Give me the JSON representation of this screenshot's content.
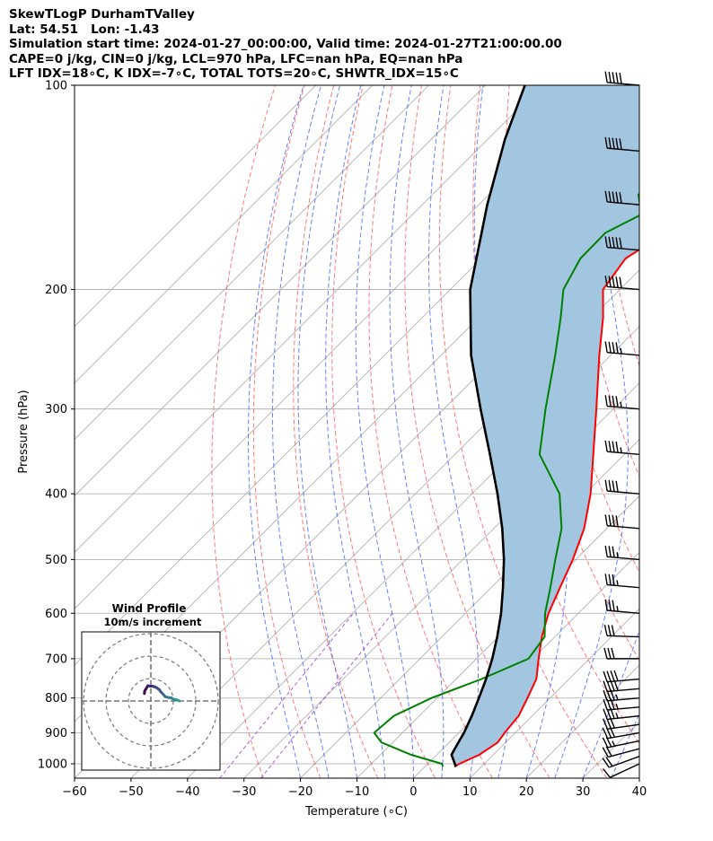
{
  "header": {
    "line1": "SkewTLogP DurhamTValley",
    "line2": "Lat: 54.51   Lon: -1.43",
    "line3": "Simulation start time: 2024-01-27_00:00:00, Valid time: 2024-01-27T21:00:00.00",
    "line4": "CAPE=0 j/kg, CIN=0 j/kg, LCL=970 hPa, LFC=nan hPa, EQ=nan hPa",
    "line5": "LFT IDX=18∘C, K IDX=-7∘C, TOTAL TOTS=20∘C, SHWTR_IDX=15∘C"
  },
  "chart_data": {
    "type": "skew-t log-p",
    "xlabel": "Temperature (∘C)",
    "ylabel": "Pressure (hPa)",
    "xlim": [
      -60,
      40
    ],
    "ylim": [
      1050,
      100
    ],
    "x_ticks": [
      -60,
      -50,
      -40,
      -30,
      -20,
      -10,
      0,
      10,
      20,
      30,
      40
    ],
    "x_tick_labels": [
      "−60",
      "−50",
      "−40",
      "−30",
      "−20",
      "−10",
      "0",
      "10",
      "20",
      "30",
      "40"
    ],
    "y_ticks": [
      1000,
      900,
      800,
      700,
      600,
      500,
      400,
      300,
      200,
      100
    ],
    "y_tick_labels": [
      "1000",
      "900",
      "800",
      "700",
      "600",
      "500",
      "400",
      "300",
      "200",
      "100"
    ],
    "grid": true,
    "colors": {
      "temperature": "#ff0000",
      "dewpoint": "#008000",
      "parcel": "#000000",
      "fill": "#a3c6e0",
      "dry_adiabat": "#ff5555",
      "moist_adiabat": "#3355ff",
      "isotherm_grid": "#aaaaaa",
      "mixing_ratio": "#9933cc"
    },
    "temperature": {
      "pressure": [
        1010,
        1000,
        970,
        930,
        900,
        850,
        800,
        750,
        700,
        650,
        600,
        550,
        500,
        450,
        400,
        350,
        300,
        250,
        220,
        200,
        180,
        165,
        150,
        135,
        120,
        110,
        100
      ],
      "temp": [
        5.2,
        5.6,
        7.5,
        8.6,
        8.1,
        7.6,
        6.0,
        4.2,
        1.0,
        -2.3,
        -5.3,
        -7.8,
        -10.5,
        -14.0,
        -19.0,
        -25.5,
        -33.0,
        -42.0,
        -48.0,
        -53.0,
        -54.5,
        -52.0,
        -50.8,
        -49.5,
        -49.0,
        -49.8,
        -50.9
      ]
    },
    "dewpoint": {
      "pressure": [
        1010,
        1000,
        970,
        930,
        900,
        850,
        800,
        750,
        700,
        650,
        600,
        550,
        500,
        450,
        400,
        350,
        300,
        250,
        220,
        200,
        180,
        165,
        155,
        145,
        135,
        120,
        110,
        100
      ],
      "temp": [
        3.2,
        2.5,
        -4.5,
        -12.0,
        -15.0,
        -14.5,
        -11.0,
        -5.5,
        -0.8,
        -1.8,
        -5.9,
        -9.5,
        -13.6,
        -18.0,
        -24.5,
        -35.0,
        -42.0,
        -49.8,
        -55.5,
        -60.0,
        -62.5,
        -62.6,
        -59.5,
        -63.5,
        -63.0,
        -60.0,
        -57.5,
        -54.8
      ]
    },
    "parcel": {
      "pressure": [
        1010,
        970,
        950,
        900,
        850,
        800,
        750,
        700,
        650,
        600,
        550,
        500,
        450,
        400,
        350,
        300,
        250,
        200,
        150,
        120,
        100
      ],
      "temp": [
        5.5,
        2.6,
        2.1,
        0.9,
        -0.7,
        -2.6,
        -4.7,
        -7.2,
        -10.2,
        -13.7,
        -17.9,
        -22.7,
        -28.5,
        -35.5,
        -43.8,
        -53.5,
        -64.7,
        -76.5,
        -88.5,
        -97.0,
        -103.0
      ]
    },
    "wind_barbs": {
      "pressure": [
        1000,
        975,
        950,
        925,
        900,
        875,
        850,
        825,
        800,
        775,
        750,
        700,
        650,
        600,
        550,
        500,
        450,
        400,
        350,
        300,
        250,
        200,
        175,
        150,
        125,
        100
      ],
      "speed_kt": [
        12,
        18,
        22,
        26,
        30,
        32,
        35,
        34,
        36,
        38,
        38,
        30,
        30,
        34,
        36,
        36,
        40,
        40,
        44,
        44,
        44,
        48,
        50,
        52,
        52,
        52
      ],
      "direction_deg": [
        245,
        250,
        255,
        258,
        260,
        262,
        264,
        265,
        265,
        265,
        265,
        270,
        272,
        275,
        275,
        275,
        275,
        275,
        275,
        275,
        275,
        275,
        275,
        275,
        275,
        275
      ]
    },
    "hodograph": {
      "title": "Wind Profile",
      "subtitle": "10m/s increment",
      "ring_step_ms": 10,
      "u_ms": [
        12.8,
        11.5,
        10.0,
        9.0,
        7.5,
        6.3,
        5.5,
        4.5,
        3.8,
        2.6,
        1.5,
        0.6,
        -0.3,
        -1.3,
        -1.7,
        -2.0,
        -2.7,
        -2.9
      ],
      "v_ms": [
        0.0,
        0.5,
        0.8,
        1.4,
        1.6,
        2.0,
        3.0,
        4.0,
        5.0,
        5.9,
        6.4,
        6.6,
        6.6,
        6.8,
        6.2,
        5.6,
        4.6,
        3.3
      ]
    }
  }
}
